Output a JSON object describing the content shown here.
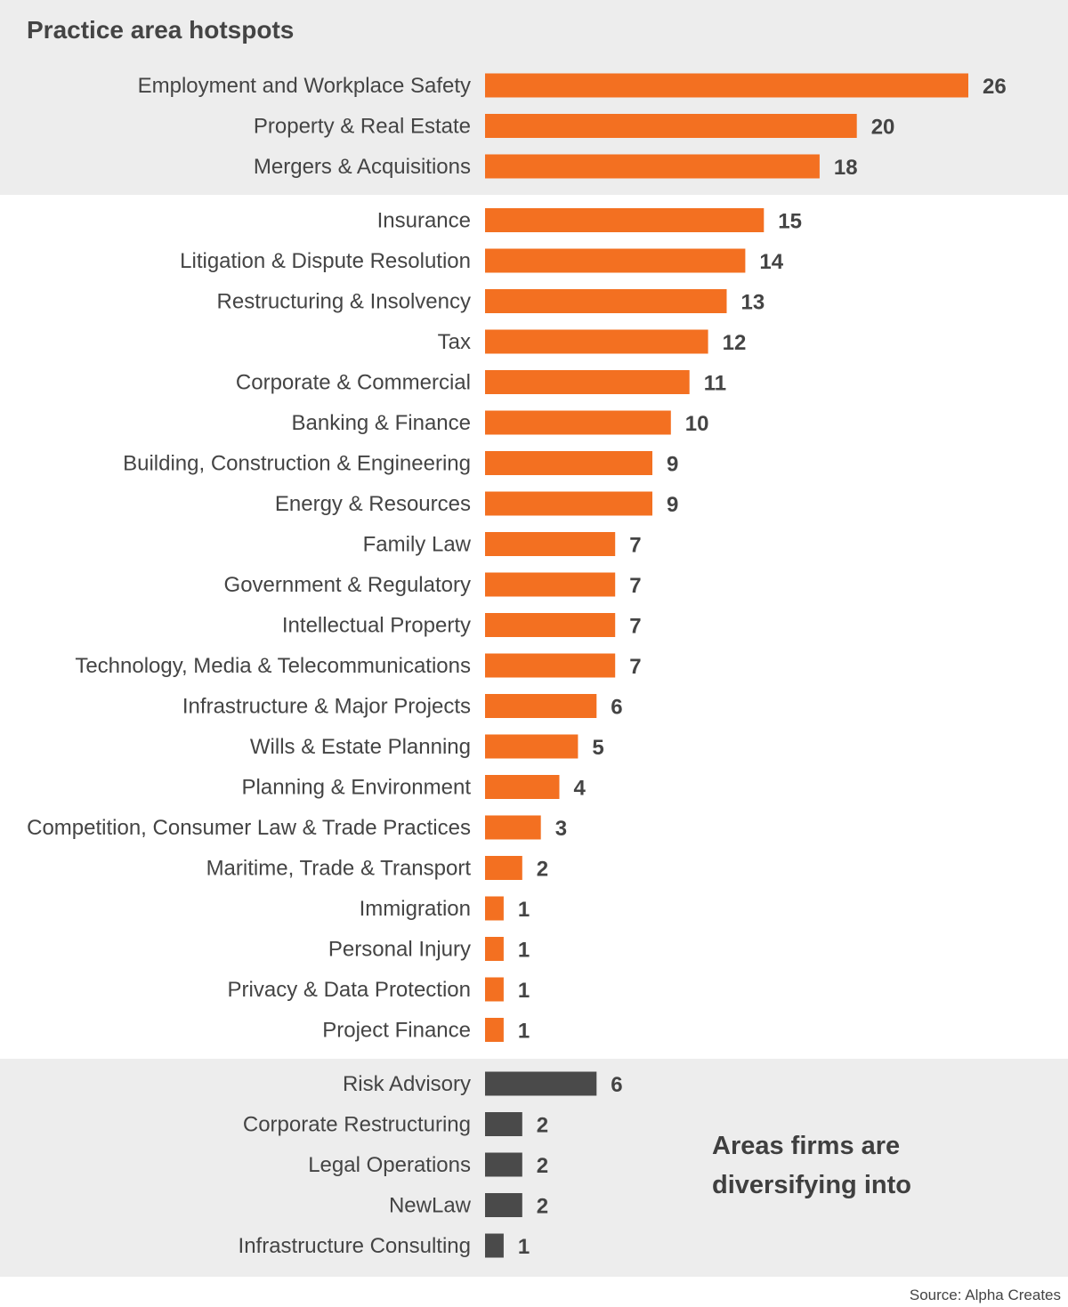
{
  "title": "Practice area hotspots",
  "side_note": "Areas firms are diversifying into",
  "source": "Source: Alpha Creates",
  "colors": {
    "orange": "#f37021",
    "dark": "#4a4a4a",
    "band": "#ededed"
  },
  "chart_data": {
    "type": "bar",
    "orientation": "horizontal",
    "title": "Practice area hotspots",
    "series": [
      {
        "name": "",
        "color": "#f37021",
        "categories": [
          "Employment and Workplace Safety",
          "Property & Real Estate",
          "Mergers & Acquisitions",
          "Insurance",
          "Litigation & Dispute Resolution",
          "Restructuring & Insolvency",
          "Tax",
          "Corporate & Commercial",
          "Banking & Finance",
          "Building, Construction & Engineering",
          "Energy & Resources",
          "Family Law",
          "Government & Regulatory",
          "Intellectual Property",
          "Technology, Media & Telecommunications",
          "Infrastructure & Major Projects",
          "Wills & Estate Planning",
          "Planning & Environment",
          "Competition, Consumer Law & Trade Practices",
          "Maritime, Trade & Transport",
          "Immigration",
          "Personal Injury",
          "Privacy & Data Protection",
          "Project Finance"
        ],
        "values": [
          26,
          20,
          18,
          15,
          14,
          13,
          12,
          11,
          10,
          9,
          9,
          7,
          7,
          7,
          7,
          6,
          5,
          4,
          3,
          2,
          1,
          1,
          1,
          1
        ]
      },
      {
        "name": "Areas firms are diversifying into",
        "color": "#4a4a4a",
        "categories": [
          "Risk Advisory",
          "Corporate Restructuring",
          "Legal Operations",
          "NewLaw",
          "Infrastructure Consulting"
        ],
        "values": [
          6,
          2,
          2,
          2,
          1
        ]
      }
    ],
    "highlighted_top": 3,
    "xlim": [
      0,
      26
    ]
  }
}
